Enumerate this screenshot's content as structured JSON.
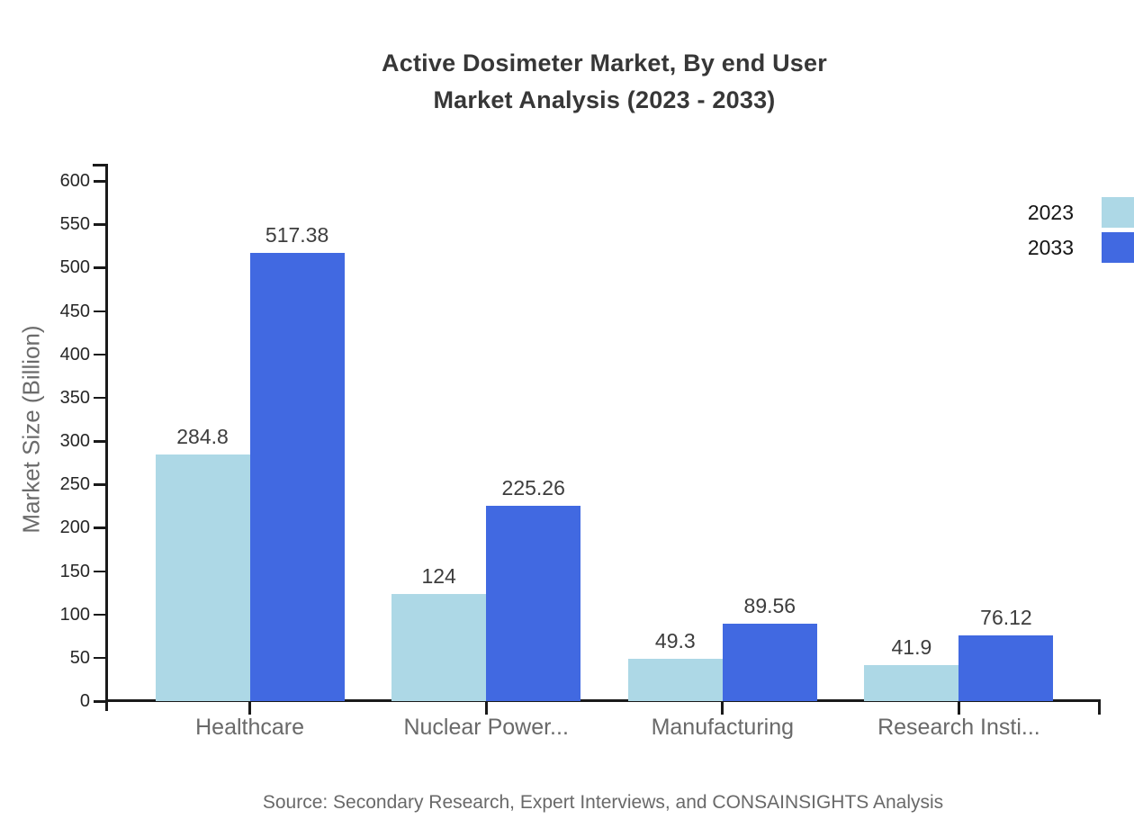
{
  "title": {
    "line1": "Active Dosimeter Market, By end User",
    "line2": "Market Analysis (2023 - 2033)"
  },
  "chart_data": {
    "type": "bar",
    "categories": [
      "Healthcare",
      "Nuclear Power...",
      "Manufacturing",
      "Research Insti..."
    ],
    "series": [
      {
        "name": "2023",
        "color": "#ADD8E6",
        "values": [
          284.8,
          124,
          49.3,
          41.9
        ]
      },
      {
        "name": "2033",
        "color": "#4169E1",
        "values": [
          517.38,
          225.26,
          89.56,
          76.12
        ]
      }
    ],
    "xlabel": "",
    "ylabel": "Market Size (Billion)",
    "ylim": [
      0,
      600
    ],
    "ytick_step": 50,
    "grid": false,
    "legend_position": "top-right",
    "value_labels_shown": true
  },
  "source": "Source: Secondary Research, Expert Interviews, and CONSAINSIGHTS Analysis"
}
